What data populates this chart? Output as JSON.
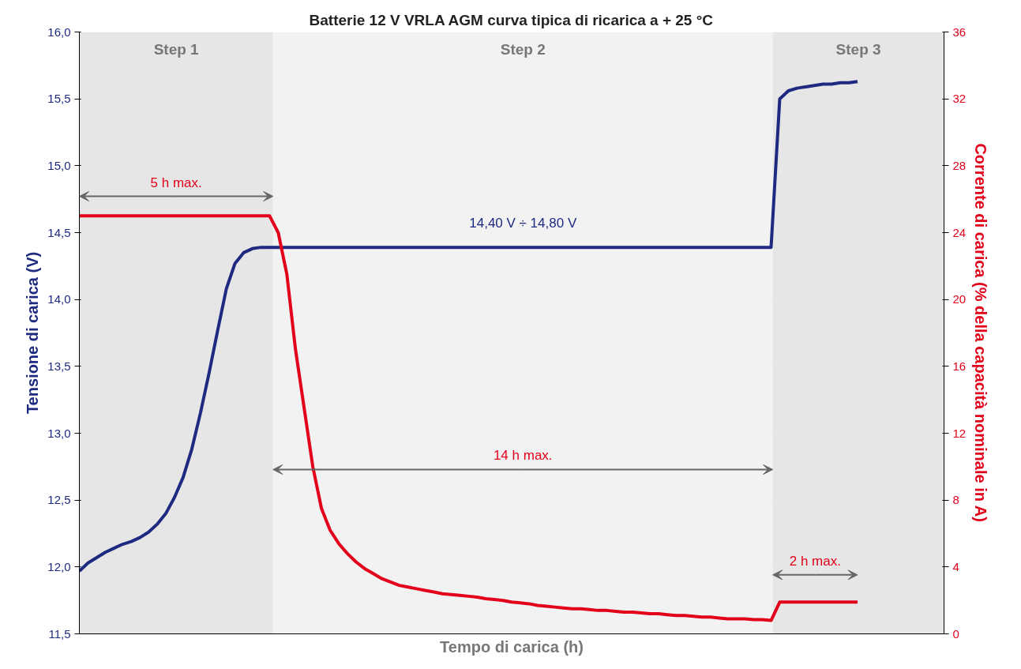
{
  "chart_data": {
    "type": "line",
    "title": "Batterie 12 V VRLA AGM curva tipica di ricarica a + 25 °C",
    "xlabel": "Tempo di carica (h)",
    "ylabel": "Tensione di carica (V)",
    "y2label": "Corrente di carica (% della capacità nominale in A)",
    "categories": [
      null,
      null,
      null,
      null,
      null,
      null,
      null,
      null,
      null,
      null,
      null,
      null,
      null,
      null,
      null,
      null,
      null,
      null,
      null,
      null,
      null,
      null,
      null,
      null,
      null,
      null,
      null,
      null,
      null,
      null,
      null,
      null,
      null,
      null,
      null,
      null,
      null,
      null,
      null,
      null,
      null,
      null,
      null,
      null,
      null,
      null,
      null,
      null,
      null,
      null,
      null,
      null,
      null,
      null,
      null,
      null,
      null,
      null,
      null,
      null,
      null,
      null,
      null,
      null,
      null,
      null,
      null,
      null,
      null,
      null,
      null,
      null,
      null,
      null,
      null,
      null,
      null,
      null,
      null,
      null,
      null,
      null,
      null,
      null,
      null,
      null,
      null,
      null,
      null,
      null,
      null,
      null,
      null,
      null,
      null,
      null,
      null,
      null,
      null,
      null,
      null
    ],
    "series": [
      {
        "color": "#1d2a80",
        "axis": "y",
        "values": [
          11.97,
          12.03,
          12.07,
          12.11,
          12.14,
          12.17,
          12.19,
          12.22,
          12.26,
          12.32,
          12.4,
          12.52,
          12.67,
          12.88,
          13.15,
          13.45,
          13.77,
          14.08,
          14.27,
          14.35,
          14.38,
          14.39,
          14.39,
          14.39,
          14.39,
          14.39,
          14.39,
          14.39,
          14.39,
          14.39,
          14.39,
          14.39,
          14.39,
          14.39,
          14.39,
          14.39,
          14.39,
          14.39,
          14.39,
          14.39,
          14.39,
          14.39,
          14.39,
          14.39,
          14.39,
          14.39,
          14.39,
          14.39,
          14.39,
          14.39,
          14.39,
          14.39,
          14.39,
          14.39,
          14.39,
          14.39,
          14.39,
          14.39,
          14.39,
          14.39,
          14.39,
          14.39,
          14.39,
          14.39,
          14.39,
          14.39,
          14.39,
          14.39,
          14.39,
          14.39,
          14.39,
          14.39,
          14.39,
          14.39,
          14.39,
          14.39,
          14.39,
          14.39,
          14.39,
          14.39,
          14.39,
          15.5,
          15.56,
          15.58,
          15.59,
          15.6,
          15.61,
          15.61,
          15.62,
          15.62,
          15.63,
          null,
          null,
          null,
          null,
          null,
          null,
          null,
          null,
          null,
          null
        ]
      },
      {
        "color": "#e2001a",
        "axis": "y2",
        "values": [
          25,
          25,
          25,
          25,
          25,
          25,
          25,
          25,
          25,
          25,
          25,
          25,
          25,
          25,
          25,
          25,
          25,
          25,
          25,
          25,
          25,
          25,
          25,
          24,
          21.5,
          17,
          13.5,
          10,
          7.5,
          6.2,
          5.4,
          4.8,
          4.3,
          3.9,
          3.6,
          3.3,
          3.1,
          2.9,
          2.8,
          2.7,
          2.6,
          2.5,
          2.4,
          2.35,
          2.3,
          2.25,
          2.2,
          2.1,
          2.05,
          2,
          1.9,
          1.85,
          1.8,
          1.7,
          1.65,
          1.6,
          1.55,
          1.5,
          1.5,
          1.45,
          1.4,
          1.4,
          1.35,
          1.3,
          1.3,
          1.25,
          1.2,
          1.2,
          1.15,
          1.1,
          1.1,
          1.05,
          1,
          1,
          0.95,
          0.9,
          0.9,
          0.9,
          0.85,
          0.85,
          0.8,
          1.9,
          1.9,
          1.9,
          1.9,
          1.9,
          1.9,
          1.9,
          1.9,
          1.9,
          1.9,
          null,
          null,
          null,
          null,
          null,
          null,
          null,
          null,
          null,
          null
        ]
      }
    ],
    "ylim": [
      11.5,
      16
    ],
    "yticks": [
      {
        "value": 11.5,
        "label": "11,5"
      },
      {
        "value": 12,
        "label": "12,0"
      },
      {
        "value": 12.5,
        "label": "12,5"
      },
      {
        "value": 13,
        "label": "13,0"
      },
      {
        "value": 13.5,
        "label": "13,5"
      },
      {
        "value": 14,
        "label": "14,0"
      },
      {
        "value": 14.5,
        "label": "14,5"
      },
      {
        "value": 15,
        "label": "15,0"
      },
      {
        "value": 15.5,
        "label": "15,5"
      },
      {
        "value": 16,
        "label": "16,0"
      }
    ],
    "y2lim": [
      0,
      36
    ],
    "y2ticks": [
      0,
      4,
      8,
      12,
      16,
      20,
      24,
      28,
      32,
      36
    ],
    "grid": "y",
    "annotations": [
      "Step 1",
      "Step 2",
      "Step 3",
      "5 h max.",
      "14 h max.",
      "2 h max.",
      "14,40 V ÷ 14,80 V"
    ]
  }
}
